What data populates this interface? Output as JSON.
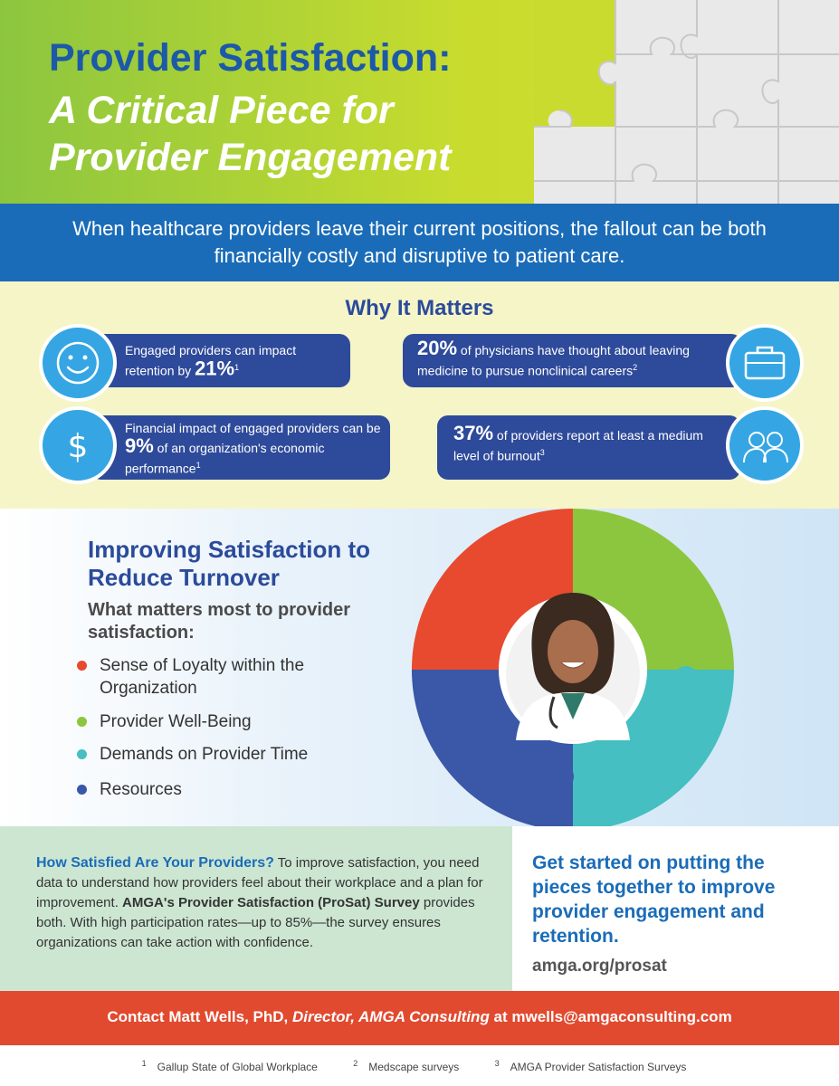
{
  "header": {
    "title_line1": "Provider Satisfaction:",
    "title_line2": "A Critical Piece for",
    "title_line3": "Provider Engagement"
  },
  "intro": {
    "text": "When healthcare providers leave their current positions, the fallout can be both financially costly and disruptive to patient care."
  },
  "why": {
    "title": "Why It Matters",
    "stats": [
      {
        "pre": "Engaged providers can impact retention by ",
        "value": "21%",
        "post": "",
        "ref": "1",
        "icon": "smiley-icon"
      },
      {
        "pre": "",
        "value": "20%",
        "post": " of physicians have thought about leaving medicine to pursue nonclinical careers",
        "ref": "2",
        "icon": "briefcase-icon"
      },
      {
        "pre": "Financial impact of engaged providers can be ",
        "value": "9%",
        "post": " of an organization's economic performance",
        "ref": "1",
        "icon": "dollar-icon"
      },
      {
        "pre": "",
        "value": "37%",
        "post": " of providers report at least a medium level of burnout",
        "ref": "3",
        "icon": "providers-icon"
      }
    ]
  },
  "improve": {
    "title": "Improving Satisfaction to Reduce Turnover",
    "subtitle": "What matters most to provider satisfaction:",
    "bullets": [
      {
        "label": "Sense of Loyalty within the Organization",
        "color": "#e84a2f"
      },
      {
        "label": "Provider Well-Being",
        "color": "#8cc63f"
      },
      {
        "label": "Demands on Provider Time",
        "color": "#45bfc1"
      },
      {
        "label": "Resources",
        "color": "#3a57a8"
      }
    ]
  },
  "satisfied": {
    "heading": "How Satisfied Are Your Providers?",
    "text1": " To improve satisfaction, you need data to understand how providers feel about their workplace and a plan for improvement. ",
    "bold": "AMGA's Provider Satisfaction (ProSat) Survey",
    "text2": " provides both. With high participation rates—up to 85%—the survey ensures organizations can take action with confidence."
  },
  "cta": {
    "text": "Get started on putting the pieces together to improve provider engagement and retention.",
    "url": "amga.org/prosat"
  },
  "contact": {
    "pre": "Contact Matt Wells, PhD, ",
    "role": "Director, AMGA Consulting",
    "mid": " at ",
    "email": "mwells@amgaconsulting.com"
  },
  "footnotes": [
    {
      "num": "1",
      "text": "Gallup State of Global Workplace"
    },
    {
      "num": "2",
      "text": "Medscape surveys"
    },
    {
      "num": "3",
      "text": "AMGA Provider Satisfaction Surveys"
    }
  ],
  "colors": {
    "navy": "#2e4a9a",
    "blue": "#1a6cb8",
    "sky": "#35a6e3",
    "red": "#e84a2f",
    "green": "#8cc63f",
    "teal": "#45bfc1"
  }
}
